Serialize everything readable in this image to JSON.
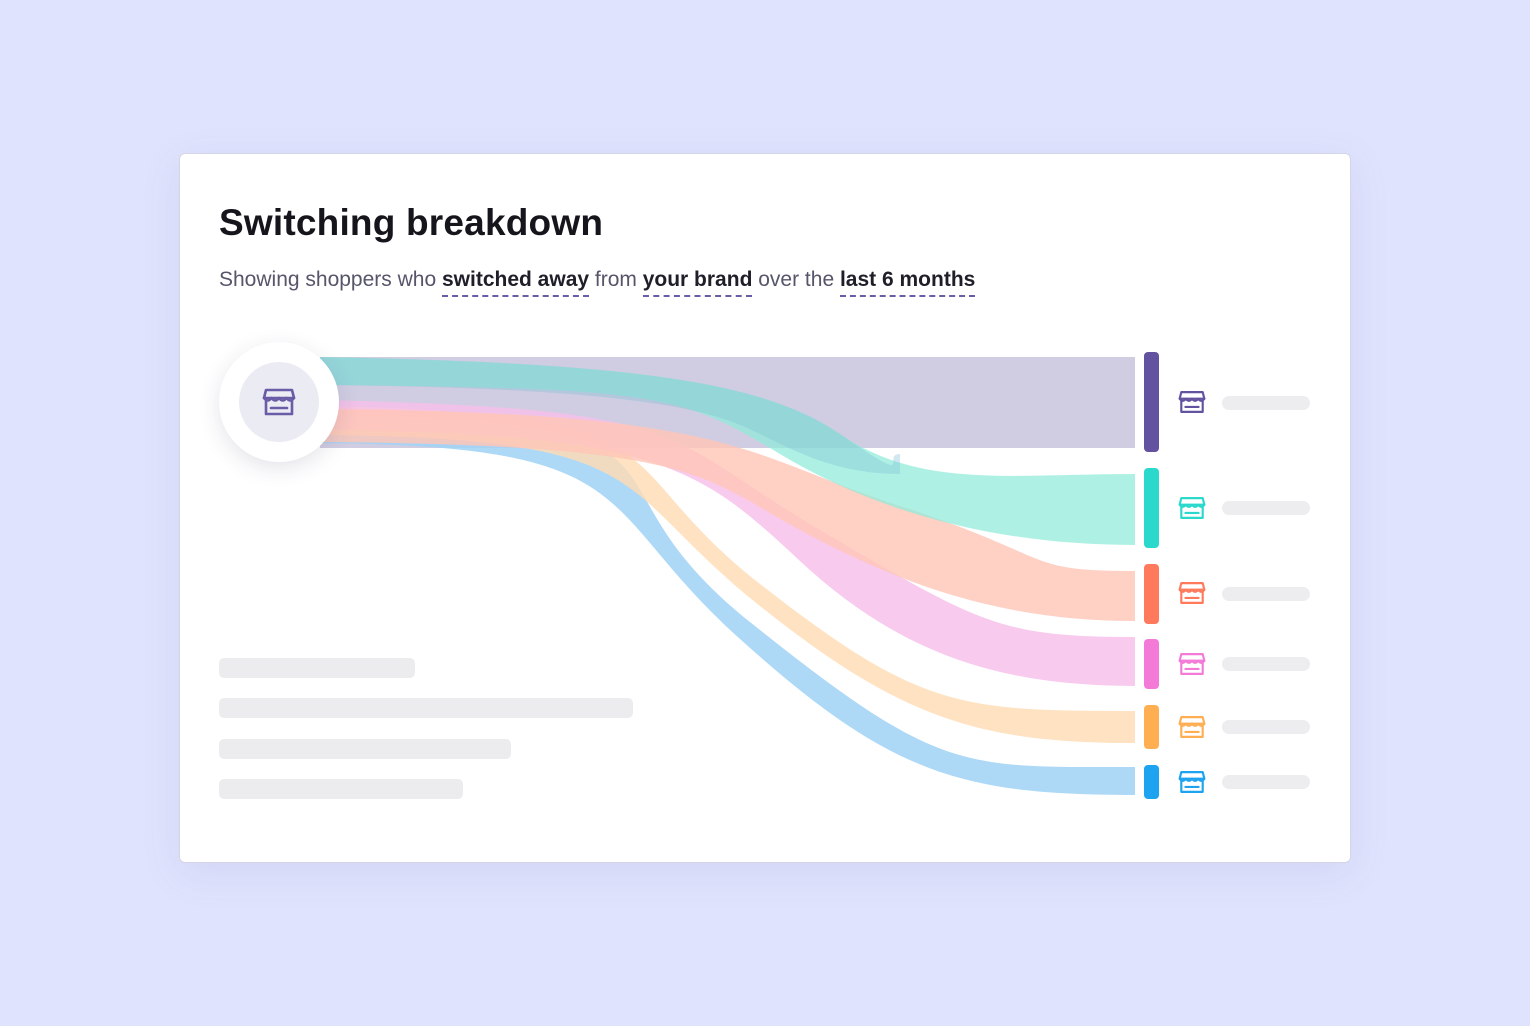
{
  "card": {
    "title": "Switching breakdown",
    "subtitle": {
      "part1": "Showing shoppers who ",
      "filter_action": "switched away",
      "part2": " from ",
      "filter_brand": "your brand",
      "part3": " over the ",
      "filter_period": "last 6 months"
    }
  },
  "source": {
    "icon": "store-icon"
  },
  "destinations": [
    {
      "icon": "store-icon",
      "color": "#62529f",
      "flow_color": "#d0cde2"
    },
    {
      "icon": "store-icon",
      "color": "#2ad9cc",
      "flow_color": "#a8f0ec"
    },
    {
      "icon": "store-icon",
      "color": "#ff7a5c",
      "flow_color": "#ffcfc3"
    },
    {
      "icon": "store-icon",
      "color": "#f47ad8",
      "flow_color": "#f9c9ef"
    },
    {
      "icon": "store-icon",
      "color": "#ffae52",
      "flow_color": "#ffe2c0"
    },
    {
      "icon": "store-icon",
      "color": "#1ea3f1",
      "flow_color": "#a9d8f8"
    }
  ]
}
